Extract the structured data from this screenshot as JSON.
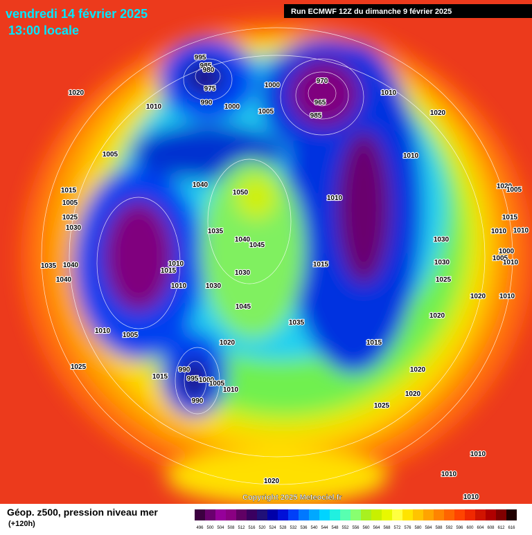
{
  "header": {
    "title": "vendredi 14 février 2025",
    "subtitle": "13:00 locale",
    "run": "Run ECMWF 12Z du dimanche 9 février 2025"
  },
  "copyright": "Copyright 2025 Meteociel.fr",
  "footer": {
    "title": "Géop. z500, pression niveau mer",
    "lead": "(+120h)"
  },
  "colorbar": {
    "labels": [
      496,
      500,
      504,
      508,
      512,
      516,
      520,
      524,
      528,
      532,
      536,
      540,
      544,
      548,
      552,
      556,
      560,
      564,
      568,
      572,
      576,
      580,
      584,
      588,
      592,
      596,
      600,
      604,
      608,
      612,
      616
    ],
    "colors": [
      "#3c0040",
      "#6a006e",
      "#96009a",
      "#8a0082",
      "#600064",
      "#3a0060",
      "#201078",
      "#0000a8",
      "#0010d8",
      "#0040f8",
      "#0078ff",
      "#00a8ff",
      "#00d4ff",
      "#20f0e0",
      "#58ffb0",
      "#88ff70",
      "#a8f020",
      "#c8f000",
      "#e8f800",
      "#ffff40",
      "#ffe400",
      "#ffc400",
      "#ffa400",
      "#ff8400",
      "#ff6400",
      "#ff4400",
      "#f02800",
      "#d01400",
      "#b00000",
      "#800000",
      "#200000"
    ]
  },
  "pressure_labels": [
    995,
    985,
    980,
    975,
    990,
    1000,
    1020,
    1010,
    1000,
    970,
    965,
    985,
    1010,
    1020,
    1005,
    1005,
    1010,
    1015,
    1040,
    1050,
    1010,
    1020,
    1005,
    1025,
    1030,
    1005,
    1015,
    1010,
    1010,
    1035,
    1040,
    1045,
    1030,
    1000,
    1005,
    1010,
    1035,
    1040,
    1010,
    1015,
    1030,
    1015,
    1030,
    1040,
    1010,
    1030,
    1025,
    1020,
    1010,
    1045,
    1020,
    1035,
    1010,
    1005,
    1015,
    1020,
    1025,
    990,
    1015,
    995,
    1000,
    1005,
    1020,
    1010,
    1020,
    990,
    1025,
    1010,
    1010,
    1020,
    1010
  ]
}
